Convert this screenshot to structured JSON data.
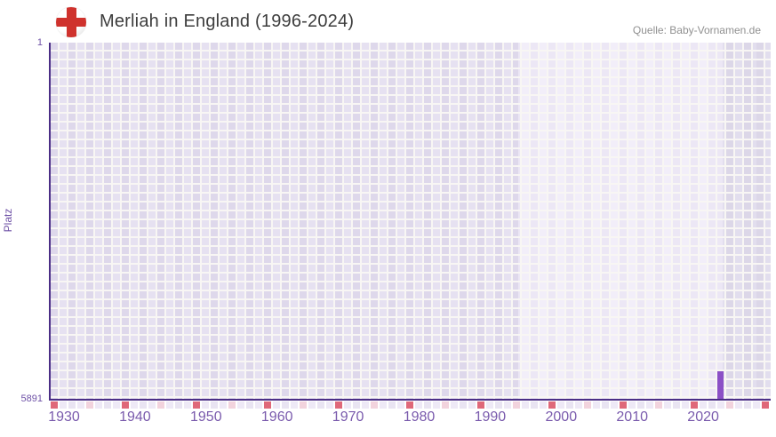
{
  "header": {
    "title": "Merliah in England (1996-2024)",
    "source": "Quelle: Baby-Vornamen.de",
    "flag": "england-flag"
  },
  "chart_data": {
    "type": "bar",
    "title": "Merliah in England (1996-2024)",
    "xlabel": "",
    "ylabel": "Platz",
    "y_axis_top_label": "1",
    "y_axis_bottom_label": "5891",
    "ylim": [
      1,
      5891
    ],
    "y_inverted": true,
    "x_range_years": [
      1928,
      2029
    ],
    "x_ticks": [
      "1930",
      "1940",
      "1950",
      "1960",
      "1970",
      "1980",
      "1990",
      "2000",
      "2010",
      "2020"
    ],
    "data_period": "1996-2024",
    "series": [
      {
        "name": "Merliah",
        "points": [
          {
            "year": 2022,
            "rank": 5891
          }
        ]
      }
    ],
    "legend": "none",
    "grid": "checkered background, highlighted band for the data period 1996-2024",
    "colors": {
      "bar": "#8b50c6",
      "axis": "#4b2e86",
      "tick_labels": "#7a5bad",
      "grid_cell_outside": "#e2ddee",
      "grid_cell_inside": "#f0ecf8",
      "strip_red": "#df6879",
      "strip_pink": "#f2d3dd",
      "strip_pale": "#e9e4f2",
      "flag_red": "#cf322d",
      "title_text": "#3d3d3d",
      "source_text": "#909090"
    },
    "timeline_strip": {
      "cell_count": 81,
      "red_cell_interval": 8,
      "red_cell_start_index": 0,
      "pink_cell_interval": 8,
      "pink_cell_start_index": 4
    }
  }
}
